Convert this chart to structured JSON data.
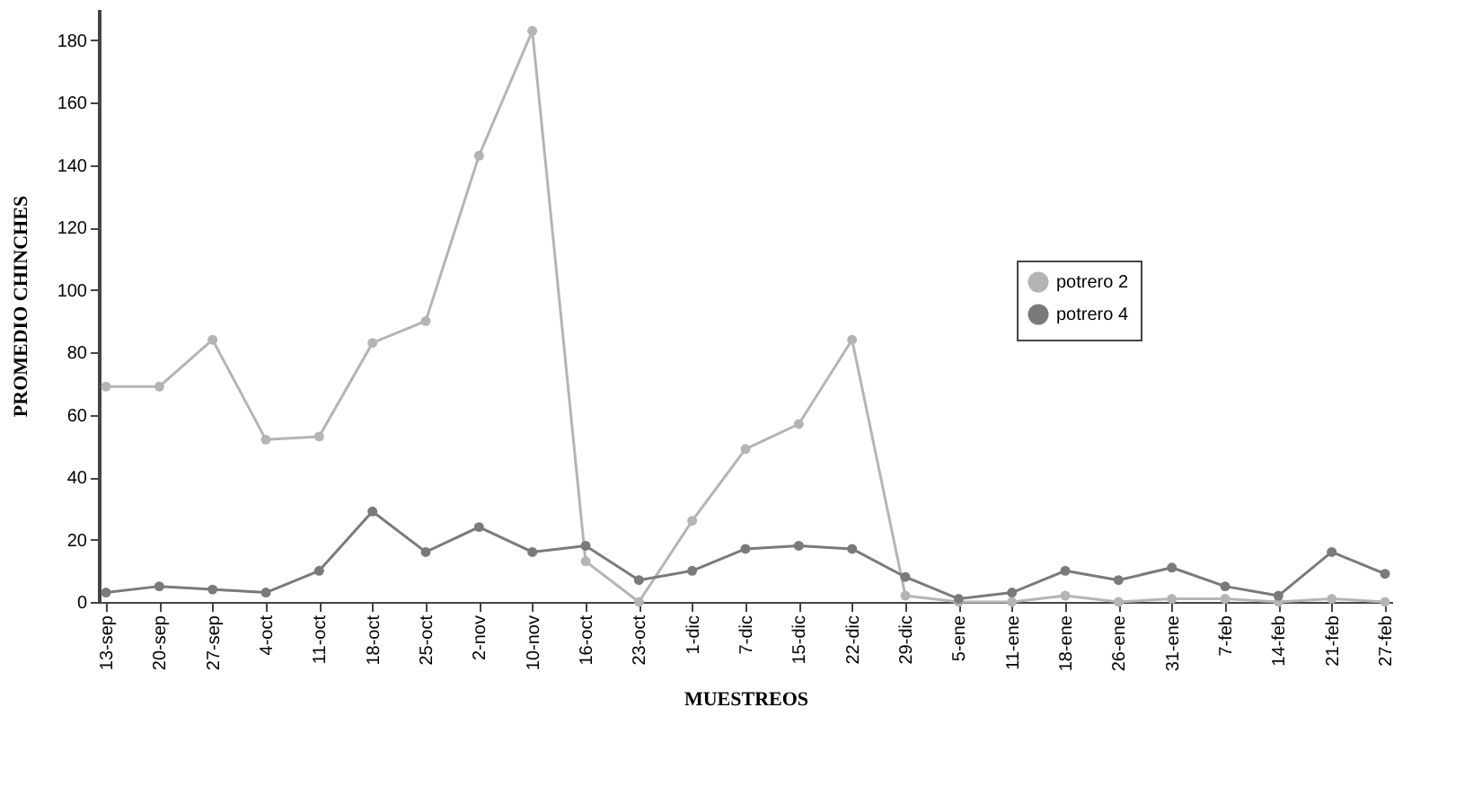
{
  "chart_data": {
    "type": "line",
    "xlabel": "MUESTREOS",
    "ylabel": "PROMEDIO CHINCHES",
    "categories": [
      "13-sep",
      "20-sep",
      "27-sep",
      "4-oct",
      "11-oct",
      "18-oct",
      "25-oct",
      "2-nov",
      "10-nov",
      "16-oct",
      "23-oct",
      "1-dic",
      "7-dic",
      "15-dic",
      "22-dic",
      "29-dic",
      "5-ene",
      "11-ene",
      "18-ene",
      "26-ene",
      "31-ene",
      "7-feb",
      "14-feb",
      "21-feb",
      "27-feb"
    ],
    "series": [
      {
        "name": "potrero 2",
        "color": "#b4b4b4",
        "values": [
          69,
          69,
          84,
          52,
          53,
          83,
          90,
          143,
          183,
          13,
          0,
          26,
          49,
          57,
          84,
          2,
          0,
          0,
          2,
          0,
          1,
          1,
          0,
          1,
          0
        ]
      },
      {
        "name": "potrero 4",
        "color": "#7a7a7a",
        "values": [
          3,
          5,
          4,
          3,
          10,
          29,
          16,
          24,
          16,
          18,
          7,
          10,
          17,
          18,
          17,
          8,
          1,
          3,
          10,
          7,
          11,
          5,
          2,
          16,
          9
        ]
      }
    ],
    "ylim": [
      0,
      190
    ],
    "yticks": [
      0,
      20,
      40,
      60,
      80,
      100,
      120,
      140,
      160,
      180
    ],
    "grid": false,
    "legend": "top right",
    "marker": "circle",
    "line_style": "solid"
  }
}
